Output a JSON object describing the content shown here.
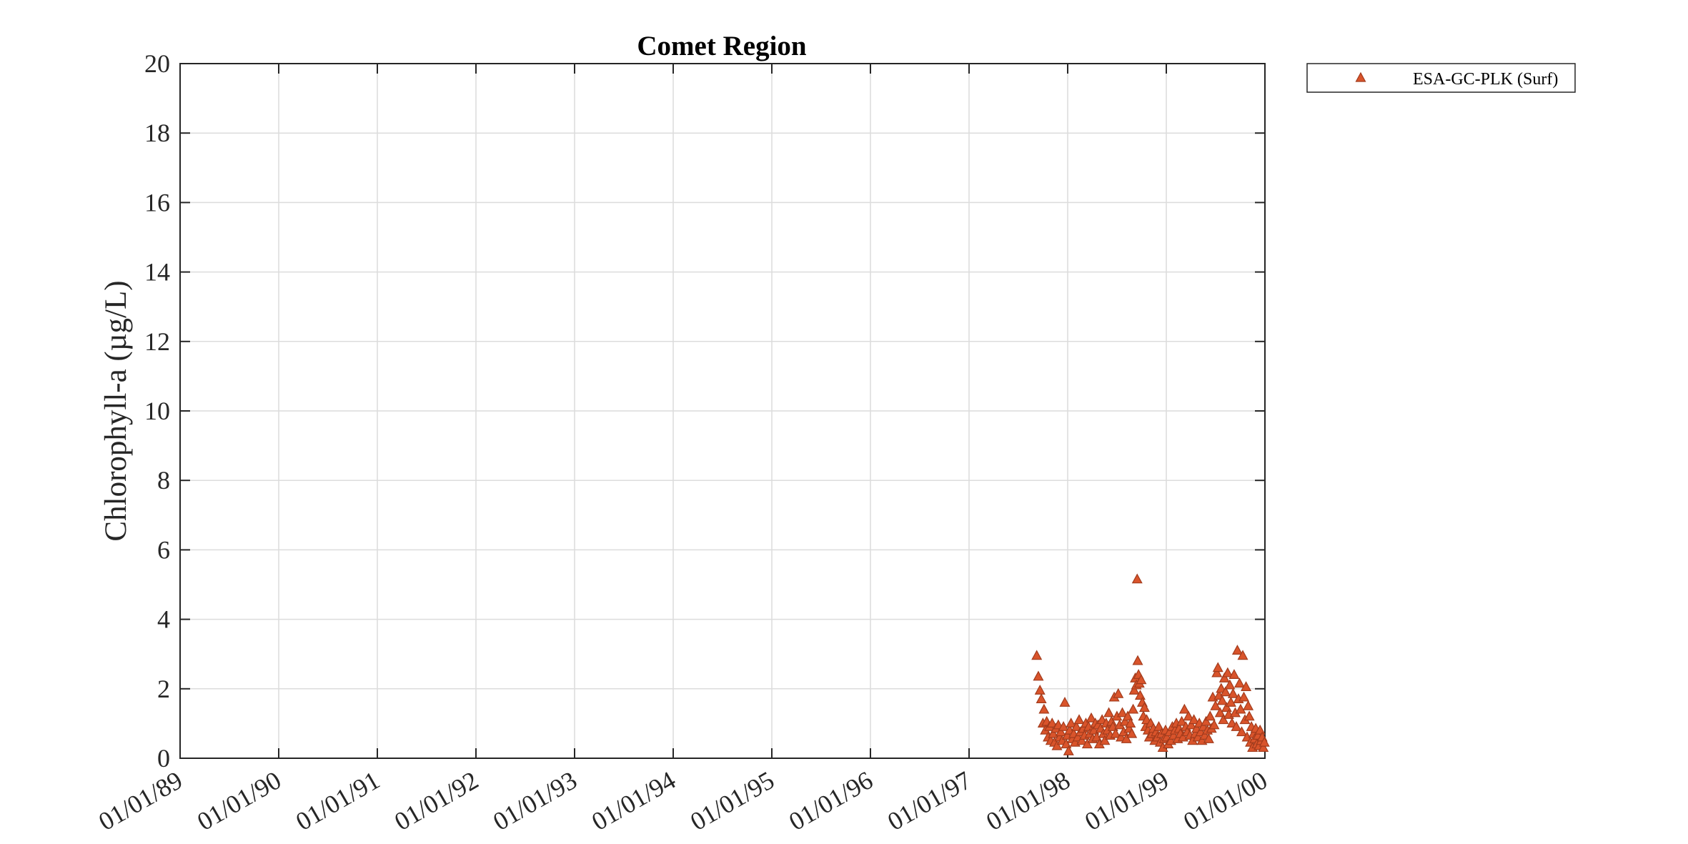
{
  "chart_data": {
    "type": "scatter",
    "title": "Comet Region",
    "xlabel": "",
    "ylabel": "Chlorophyll-a (µg/L)",
    "x_ticks": [
      "01/01/89",
      "01/01/90",
      "01/01/91",
      "01/01/92",
      "01/01/93",
      "01/01/94",
      "01/01/95",
      "01/01/96",
      "01/01/97",
      "01/01/98",
      "01/01/99",
      "01/01/00"
    ],
    "xlim": [
      "1989-01-01",
      "2000-01-01"
    ],
    "ylim": [
      0,
      20
    ],
    "y_ticks": [
      0,
      2,
      4,
      6,
      8,
      10,
      12,
      14,
      16,
      18,
      20
    ],
    "grid": true,
    "legend_position": "outside top-right",
    "series": [
      {
        "name": "ESA-GC-PLK (Surf)",
        "marker": "triangle",
        "color": "#d9542b",
        "edge_color": "#a23b1c",
        "points": [
          [
            "1997-09-08",
            2.95
          ],
          [
            "1997-09-14",
            2.35
          ],
          [
            "1997-09-20",
            1.95
          ],
          [
            "1997-09-25",
            1.7
          ],
          [
            "1997-10-01",
            1.0
          ],
          [
            "1997-10-05",
            1.4
          ],
          [
            "1997-10-10",
            0.8
          ],
          [
            "1997-10-15",
            1.05
          ],
          [
            "1997-10-20",
            0.6
          ],
          [
            "1997-10-25",
            0.9
          ],
          [
            "1997-10-30",
            0.5
          ],
          [
            "1997-11-04",
            1.0
          ],
          [
            "1997-11-08",
            0.7
          ],
          [
            "1997-11-13",
            0.45
          ],
          [
            "1997-11-18",
            0.85
          ],
          [
            "1997-11-22",
            0.35
          ],
          [
            "1997-11-27",
            0.95
          ],
          [
            "1997-12-02",
            0.6
          ],
          [
            "1997-12-06",
            0.75
          ],
          [
            "1997-12-11",
            0.5
          ],
          [
            "1997-12-16",
            0.9
          ],
          [
            "1997-12-21",
            1.6
          ],
          [
            "1997-12-26",
            0.4
          ],
          [
            "1997-12-30",
            0.65
          ],
          [
            "1998-01-04",
            0.2
          ],
          [
            "1998-01-08",
            0.8
          ],
          [
            "1998-01-13",
            1.0
          ],
          [
            "1998-01-18",
            0.55
          ],
          [
            "1998-01-23",
            0.7
          ],
          [
            "1998-01-28",
            0.45
          ],
          [
            "1998-02-02",
            0.9
          ],
          [
            "1998-02-07",
            0.6
          ],
          [
            "1998-02-12",
            1.1
          ],
          [
            "1998-02-17",
            0.75
          ],
          [
            "1998-02-22",
            0.5
          ],
          [
            "1998-02-27",
            0.85
          ],
          [
            "1998-03-04",
            0.65
          ],
          [
            "1998-03-09",
            1.0
          ],
          [
            "1998-03-14",
            0.4
          ],
          [
            "1998-03-19",
            0.9
          ],
          [
            "1998-03-24",
            0.7
          ],
          [
            "1998-03-29",
            1.15
          ],
          [
            "1998-04-03",
            0.55
          ],
          [
            "1998-04-08",
            0.8
          ],
          [
            "1998-04-13",
            1.0
          ],
          [
            "1998-04-18",
            0.6
          ],
          [
            "1998-04-23",
            0.95
          ],
          [
            "1998-04-28",
            0.4
          ],
          [
            "1998-05-03",
            0.85
          ],
          [
            "1998-05-08",
            1.1
          ],
          [
            "1998-05-13",
            0.7
          ],
          [
            "1998-05-18",
            0.5
          ],
          [
            "1998-05-23",
            1.0
          ],
          [
            "1998-05-28",
            0.8
          ],
          [
            "1998-06-02",
            1.3
          ],
          [
            "1998-06-07",
            0.65
          ],
          [
            "1998-06-12",
            1.05
          ],
          [
            "1998-06-17",
            0.9
          ],
          [
            "1998-06-22",
            1.75
          ],
          [
            "1998-06-27",
            0.7
          ],
          [
            "1998-07-02",
            1.2
          ],
          [
            "1998-07-07",
            1.85
          ],
          [
            "1998-07-12",
            0.95
          ],
          [
            "1998-07-17",
            0.6
          ],
          [
            "1998-07-22",
            1.3
          ],
          [
            "1998-07-27",
            0.75
          ],
          [
            "1998-08-01",
            1.05
          ],
          [
            "1998-08-06",
            0.55
          ],
          [
            "1998-08-11",
            1.2
          ],
          [
            "1998-08-16",
            0.85
          ],
          [
            "1998-08-21",
            1.0
          ],
          [
            "1998-08-26",
            0.7
          ],
          [
            "1998-08-31",
            1.4
          ],
          [
            "1998-09-04",
            1.95
          ],
          [
            "1998-09-08",
            2.3
          ],
          [
            "1998-09-12",
            2.1
          ],
          [
            "1998-09-15",
            5.15
          ],
          [
            "1998-09-17",
            2.8
          ],
          [
            "1998-09-20",
            2.4
          ],
          [
            "1998-09-23",
            2.15
          ],
          [
            "1998-09-26",
            1.8
          ],
          [
            "1998-09-30",
            2.25
          ],
          [
            "1998-10-04",
            1.6
          ],
          [
            "1998-10-08",
            1.2
          ],
          [
            "1998-10-12",
            1.45
          ],
          [
            "1998-10-16",
            0.9
          ],
          [
            "1998-10-20",
            1.1
          ],
          [
            "1998-10-25",
            0.8
          ],
          [
            "1998-10-30",
            0.6
          ],
          [
            "1998-11-04",
            1.0
          ],
          [
            "1998-11-09",
            0.7
          ],
          [
            "1998-11-14",
            0.85
          ],
          [
            "1998-11-19",
            0.5
          ],
          [
            "1998-11-24",
            0.75
          ],
          [
            "1998-11-29",
            0.6
          ],
          [
            "1998-12-04",
            0.9
          ],
          [
            "1998-12-09",
            0.45
          ],
          [
            "1998-12-14",
            0.7
          ],
          [
            "1998-12-19",
            0.3
          ],
          [
            "1998-12-24",
            0.55
          ],
          [
            "1998-12-29",
            0.8
          ],
          [
            "1999-01-03",
            0.6
          ],
          [
            "1999-01-08",
            0.4
          ],
          [
            "1999-01-13",
            0.75
          ],
          [
            "1999-01-18",
            0.5
          ],
          [
            "1999-01-23",
            0.9
          ],
          [
            "1999-01-28",
            0.65
          ],
          [
            "1999-02-02",
            0.8
          ],
          [
            "1999-02-07",
            1.0
          ],
          [
            "1999-02-12",
            0.55
          ],
          [
            "1999-02-17",
            0.85
          ],
          [
            "1999-02-22",
            0.7
          ],
          [
            "1999-02-27",
            1.05
          ],
          [
            "1999-03-04",
            0.6
          ],
          [
            "1999-03-09",
            1.4
          ],
          [
            "1999-03-14",
            0.9
          ],
          [
            "1999-03-19",
            0.75
          ],
          [
            "1999-03-24",
            1.2
          ],
          [
            "1999-03-29",
            0.65
          ],
          [
            "1999-04-03",
            0.95
          ],
          [
            "1999-04-08",
            0.5
          ],
          [
            "1999-04-13",
            1.1
          ],
          [
            "1999-04-18",
            0.7
          ],
          [
            "1999-04-23",
            0.85
          ],
          [
            "1999-04-28",
            0.6
          ],
          [
            "1999-05-03",
            1.0
          ],
          [
            "1999-05-08",
            0.75
          ],
          [
            "1999-05-13",
            0.5
          ],
          [
            "1999-05-18",
            0.9
          ],
          [
            "1999-05-23",
            0.65
          ],
          [
            "1999-05-28",
            1.05
          ],
          [
            "1999-06-02",
            0.8
          ],
          [
            "1999-06-07",
            0.55
          ],
          [
            "1999-06-12",
            1.2
          ],
          [
            "1999-06-17",
            0.85
          ],
          [
            "1999-06-22",
            1.75
          ],
          [
            "1999-06-27",
            0.95
          ],
          [
            "1999-07-02",
            1.5
          ],
          [
            "1999-07-07",
            2.45
          ],
          [
            "1999-07-11",
            2.6
          ],
          [
            "1999-07-15",
            1.8
          ],
          [
            "1999-07-19",
            1.3
          ],
          [
            "1999-07-23",
            2.0
          ],
          [
            "1999-07-27",
            1.65
          ],
          [
            "1999-07-31",
            1.1
          ],
          [
            "1999-08-04",
            2.3
          ],
          [
            "1999-08-08",
            1.9
          ],
          [
            "1999-08-12",
            1.45
          ],
          [
            "1999-08-16",
            2.45
          ],
          [
            "1999-08-20",
            1.25
          ],
          [
            "1999-08-24",
            2.1
          ],
          [
            "1999-08-28",
            1.6
          ],
          [
            "1999-09-01",
            1.0
          ],
          [
            "1999-09-05",
            1.85
          ],
          [
            "1999-09-09",
            2.4
          ],
          [
            "1999-09-13",
            1.3
          ],
          [
            "1999-09-17",
            0.9
          ],
          [
            "1999-09-21",
            3.1
          ],
          [
            "1999-09-25",
            1.7
          ],
          [
            "1999-09-29",
            2.15
          ],
          [
            "1999-10-03",
            1.4
          ],
          [
            "1999-10-07",
            0.75
          ],
          [
            "1999-10-11",
            2.95
          ],
          [
            "1999-10-15",
            1.75
          ],
          [
            "1999-10-19",
            1.1
          ],
          [
            "1999-10-23",
            2.05
          ],
          [
            "1999-10-27",
            0.6
          ],
          [
            "1999-10-31",
            1.5
          ],
          [
            "1999-11-04",
            1.2
          ],
          [
            "1999-11-08",
            0.45
          ],
          [
            "1999-11-12",
            0.9
          ],
          [
            "1999-11-16",
            0.3
          ],
          [
            "1999-11-20",
            0.7
          ],
          [
            "1999-11-24",
            0.55
          ],
          [
            "1999-11-28",
            0.85
          ],
          [
            "1999-12-02",
            0.4
          ],
          [
            "1999-12-06",
            0.65
          ],
          [
            "1999-12-10",
            0.35
          ],
          [
            "1999-12-14",
            0.8
          ],
          [
            "1999-12-18",
            0.5
          ],
          [
            "1999-12-22",
            0.6
          ],
          [
            "1999-12-26",
            0.3
          ],
          [
            "1999-12-30",
            0.45
          ]
        ]
      }
    ]
  }
}
